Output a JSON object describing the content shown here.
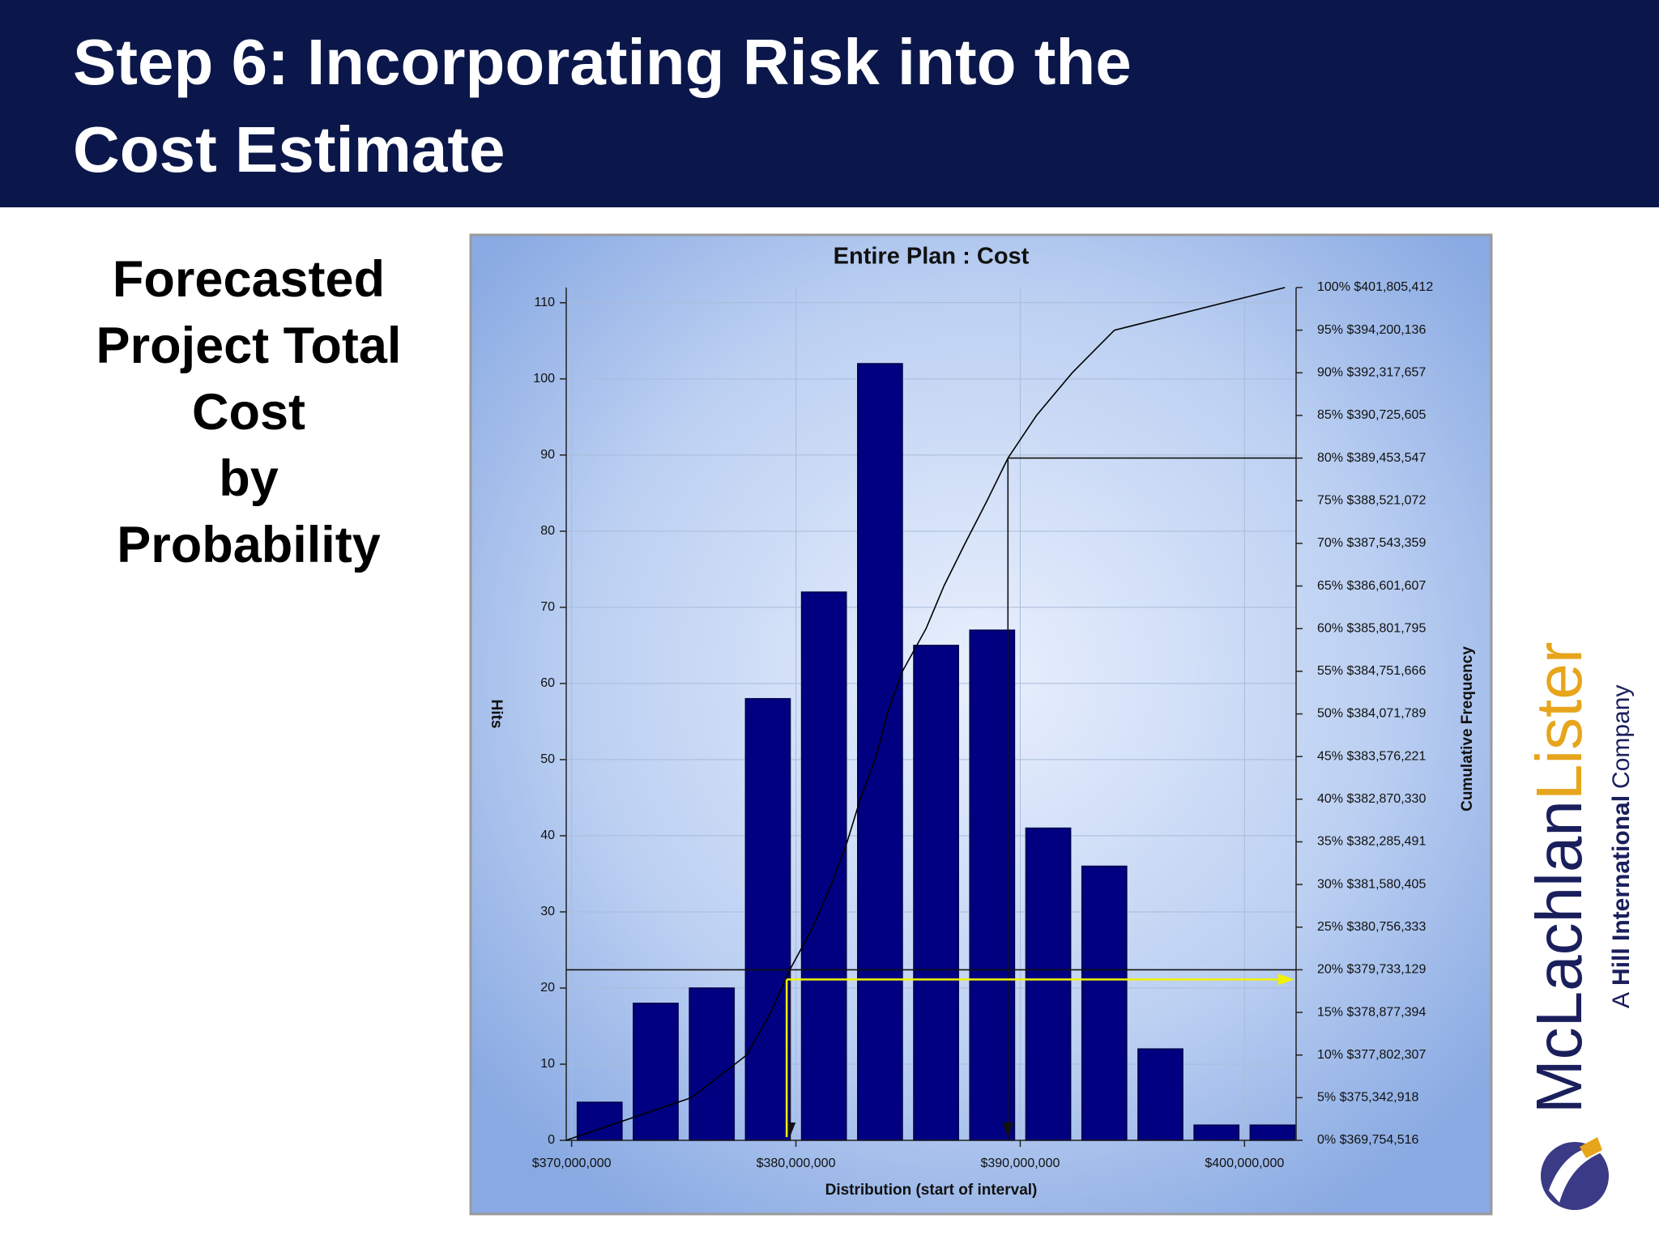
{
  "header": {
    "title_lines": [
      "Step 6: Incorporating Risk into the",
      "Cost Estimate"
    ]
  },
  "side_text": {
    "lines": [
      "Forecasted",
      "Project Total",
      "Cost",
      "by",
      "Probability"
    ]
  },
  "logo": {
    "name_part1": "McLachlan",
    "name_part2": "Lister",
    "tagline": [
      "A",
      "Hill International",
      "Company"
    ]
  },
  "chart_data": {
    "type": "histogram",
    "title": "Entire Plan : Cost",
    "x_label": "Distribution (start of interval)",
    "y_label": "Hits",
    "y2_label": "Cumulative Frequency",
    "color": "#000080",
    "grid": true,
    "bins": [
      370000000,
      372500000,
      375000000,
      377500000,
      380000000,
      382500000,
      385000000,
      387500000,
      390000000,
      392500000,
      395000000,
      397500000,
      400000000,
      402500000
    ],
    "values": [
      5,
      18,
      20,
      58,
      72,
      102,
      65,
      67,
      41,
      36,
      12,
      2,
      2
    ],
    "xlim": [
      369760000,
      402300000
    ],
    "xticks": [
      {
        "value": 370000000,
        "label": "$370,000,000"
      },
      {
        "value": 380000000,
        "label": "$380,000,000"
      },
      {
        "value": 390000000,
        "label": "$390,000,000"
      },
      {
        "value": 400000000,
        "label": "$400,000,000"
      }
    ],
    "ylim": [
      0,
      112
    ],
    "yticks": [
      0,
      10,
      20,
      30,
      40,
      50,
      60,
      70,
      80,
      90,
      100,
      110
    ],
    "y2lim": [
      0,
      100
    ],
    "y2ticks": [
      {
        "value": 0,
        "label": "0%  $369,754,516"
      },
      {
        "value": 5,
        "label": "5%  $375,342,918"
      },
      {
        "value": 10,
        "label": "10%  $377,802,307"
      },
      {
        "value": 15,
        "label": "15%  $378,877,394"
      },
      {
        "value": 20,
        "label": "20%  $379,733,129"
      },
      {
        "value": 25,
        "label": "25%  $380,756,333"
      },
      {
        "value": 30,
        "label": "30%  $381,580,405"
      },
      {
        "value": 35,
        "label": "35%  $382,285,491"
      },
      {
        "value": 40,
        "label": "40%  $382,870,330"
      },
      {
        "value": 45,
        "label": "45%  $383,576,221"
      },
      {
        "value": 50,
        "label": "50%  $384,071,789"
      },
      {
        "value": 55,
        "label": "55%  $384,751,666"
      },
      {
        "value": 60,
        "label": "60%  $385,801,795"
      },
      {
        "value": 65,
        "label": "65%  $386,601,607"
      },
      {
        "value": 70,
        "label": "70%  $387,543,359"
      },
      {
        "value": 75,
        "label": "75%  $388,521,072"
      },
      {
        "value": 80,
        "label": "80%  $389,453,547"
      },
      {
        "value": 85,
        "label": "85%  $390,725,605"
      },
      {
        "value": 90,
        "label": "90%  $392,317,657"
      },
      {
        "value": 95,
        "label": "95%  $394,200,136"
      },
      {
        "value": 100,
        "label": "100%  $401,805,412"
      }
    ],
    "cumulative": {
      "axis": "y2",
      "color": "#000000",
      "x": [
        369754516,
        375342918,
        377802307,
        378877394,
        379733129,
        380756333,
        381580405,
        382285491,
        382870330,
        383576221,
        384071789,
        384751666,
        385801795,
        386601607,
        387543359,
        388521072,
        389453547,
        390725605,
        392317657,
        394200136,
        401805412
      ],
      "values": [
        0,
        5,
        10,
        15,
        20,
        25,
        30,
        35,
        40,
        45,
        50,
        55,
        60,
        65,
        70,
        75,
        80,
        85,
        90,
        95,
        100
      ]
    }
  }
}
